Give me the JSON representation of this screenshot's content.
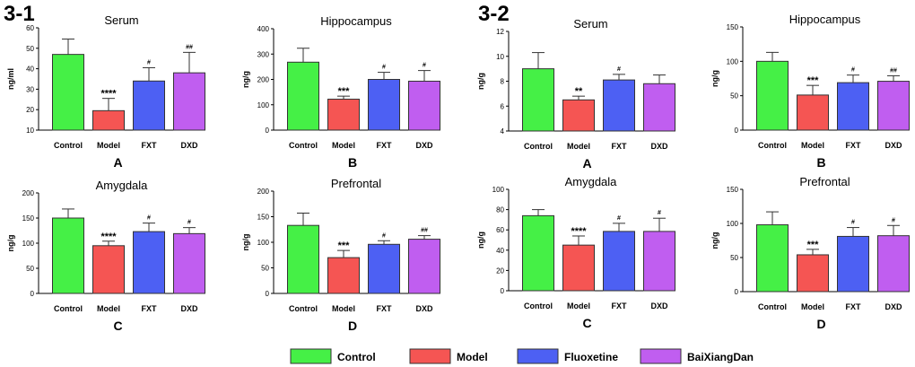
{
  "figure": {
    "sections": [
      "3-1",
      "3-2"
    ]
  },
  "colors": {
    "Control": "#45f046",
    "Model": "#f55553",
    "Fluoxetine": "#4d60f3",
    "BaiXiangDan": "#c05ef0"
  },
  "legend": [
    "Control",
    "Model",
    "Fluoxetine",
    "BaiXiangDan"
  ],
  "chart_data": [
    {
      "type": "bar",
      "title": "Serum",
      "ylabel": "ng/ml",
      "panel": "A",
      "section": "3-1",
      "categories": [
        "Control",
        "Model",
        "FXT",
        "DXD"
      ],
      "values": [
        47,
        19.5,
        34,
        38
      ],
      "errors": [
        7.5,
        6,
        6.5,
        10
      ],
      "ylim": [
        10,
        60
      ],
      "yticks": [
        10,
        20,
        30,
        40,
        50,
        60
      ],
      "baseline": 10,
      "significance": [
        "",
        "****",
        "#",
        "##"
      ]
    },
    {
      "type": "bar",
      "title": "Hippocampus",
      "ylabel": "ng/g",
      "panel": "B",
      "section": "3-1",
      "categories": [
        "Control",
        "Model",
        "FXT",
        "DXD"
      ],
      "values": [
        268,
        122,
        200,
        193
      ],
      "errors": [
        55,
        12,
        28,
        42
      ],
      "ylim": [
        0,
        400
      ],
      "yticks": [
        0,
        100,
        200,
        300,
        400
      ],
      "baseline": 0,
      "significance": [
        "",
        "***",
        "#",
        "#"
      ]
    },
    {
      "type": "bar",
      "title": "Amygdala",
      "ylabel": "ng/g",
      "panel": "C",
      "section": "3-1",
      "categories": [
        "Control",
        "Model",
        "FXT",
        "DXD"
      ],
      "values": [
        150,
        95,
        123,
        119
      ],
      "errors": [
        18,
        9,
        17,
        12
      ],
      "ylim": [
        0,
        200
      ],
      "yticks": [
        0,
        50,
        100,
        150,
        200
      ],
      "baseline": 0,
      "significance": [
        "",
        "****",
        "#",
        "#"
      ]
    },
    {
      "type": "bar",
      "title": "Prefrontal",
      "ylabel": "ng/g",
      "panel": "D",
      "section": "3-1",
      "categories": [
        "Control",
        "Model",
        "FXT",
        "DXD"
      ],
      "values": [
        133,
        70,
        96,
        106
      ],
      "errors": [
        24,
        14,
        7,
        7
      ],
      "ylim": [
        0,
        200
      ],
      "yticks": [
        0,
        50,
        100,
        150,
        200
      ],
      "baseline": 0,
      "significance": [
        "",
        "***",
        "#",
        "##"
      ]
    },
    {
      "type": "bar",
      "title": "Serum",
      "ylabel": "ng/g",
      "panel": "A",
      "section": "3-2",
      "categories": [
        "Control",
        "Model",
        "FXT",
        "DXD"
      ],
      "values": [
        9,
        6.5,
        8.1,
        7.8
      ],
      "errors": [
        1.3,
        0.3,
        0.45,
        0.7
      ],
      "ylim": [
        4,
        12
      ],
      "yticks": [
        4,
        6,
        8,
        10,
        12
      ],
      "baseline": 4,
      "significance": [
        "",
        "**",
        "#",
        ""
      ]
    },
    {
      "type": "bar",
      "title": "Hippocampus",
      "ylabel": "ng/g",
      "panel": "B",
      "section": "3-2",
      "categories": [
        "Control",
        "Model",
        "FXT",
        "DXD"
      ],
      "values": [
        100,
        51,
        69,
        71
      ],
      "errors": [
        13,
        14,
        11,
        8
      ],
      "ylim": [
        0,
        150
      ],
      "yticks": [
        0,
        50,
        100,
        150
      ],
      "baseline": 0,
      "significance": [
        "",
        "***",
        "#",
        "##"
      ]
    },
    {
      "type": "bar",
      "title": "Amygdala",
      "ylabel": "ng/g",
      "panel": "C",
      "section": "3-2",
      "categories": [
        "Control",
        "Model",
        "FXT",
        "DXD"
      ],
      "values": [
        74,
        45,
        58.5,
        58.5
      ],
      "errors": [
        6,
        9,
        8,
        13
      ],
      "ylim": [
        0,
        100
      ],
      "yticks": [
        0,
        20,
        40,
        60,
        80,
        100
      ],
      "baseline": 0,
      "significance": [
        "",
        "****",
        "#",
        "#"
      ]
    },
    {
      "type": "bar",
      "title": "Prefrontal",
      "ylabel": "ng/g",
      "panel": "D",
      "section": "3-2",
      "categories": [
        "Control",
        "Model",
        "FXT",
        "DXD"
      ],
      "values": [
        98,
        54,
        81,
        82
      ],
      "errors": [
        19,
        8,
        13,
        15
      ],
      "ylim": [
        0,
        150
      ],
      "yticks": [
        0,
        50,
        100,
        150
      ],
      "baseline": 0,
      "significance": [
        "",
        "***",
        "#",
        "#"
      ]
    }
  ]
}
